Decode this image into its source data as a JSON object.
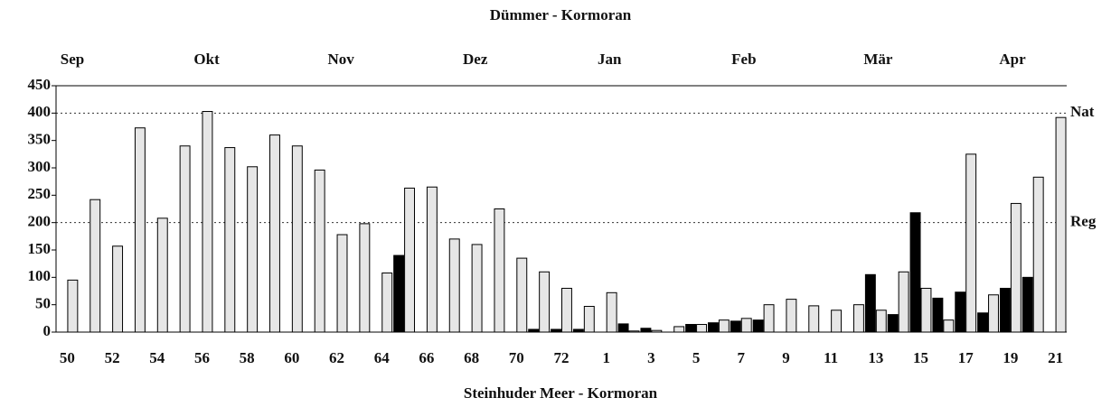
{
  "chart_data": {
    "type": "bar",
    "title": "Dümmer  -  Kormoran",
    "x_label": "Steinhuder Meer  -  Kormoran",
    "months": [
      "Sep",
      "Okt",
      "Nov",
      "Dez",
      "Jan",
      "Feb",
      "Mär",
      "Apr"
    ],
    "categories": [
      "50",
      null,
      "52",
      null,
      "54",
      null,
      "56",
      null,
      "58",
      null,
      "60",
      null,
      "62",
      null,
      "64",
      null,
      "66",
      null,
      "68",
      null,
      "70",
      null,
      "72",
      null,
      "1",
      null,
      "3",
      null,
      "5",
      null,
      "7",
      null,
      "9",
      null,
      "11",
      null,
      "13",
      null,
      "15",
      null,
      "17",
      null,
      "19",
      null,
      "21"
    ],
    "series": [
      {
        "color": "#000000",
        "values": [
          null,
          null,
          null,
          null,
          null,
          null,
          null,
          null,
          null,
          null,
          null,
          null,
          null,
          null,
          null,
          140,
          null,
          null,
          null,
          null,
          null,
          5,
          5,
          5,
          null,
          15,
          7,
          null,
          14,
          17,
          20,
          22,
          null,
          null,
          null,
          null,
          105,
          32,
          218,
          62,
          73,
          35,
          80,
          100,
          null
        ]
      },
      {
        "color": "#e6e6e6",
        "values": [
          95,
          242,
          157,
          373,
          208,
          340,
          403,
          337,
          302,
          360,
          340,
          296,
          178,
          198,
          108,
          263,
          265,
          170,
          160,
          225,
          135,
          110,
          80,
          47,
          72,
          2,
          3,
          10,
          14,
          22,
          25,
          50,
          60,
          48,
          40,
          50,
          40,
          110,
          80,
          22,
          325,
          68,
          235,
          283,
          392
        ]
      }
    ],
    "reference_lines": [
      {
        "value": 400,
        "label": "Nat"
      },
      {
        "value": 200,
        "label": "Reg"
      }
    ],
    "ylim": [
      0,
      450
    ],
    "yticks": [
      0,
      50,
      100,
      150,
      200,
      250,
      300,
      350,
      400,
      450
    ]
  }
}
